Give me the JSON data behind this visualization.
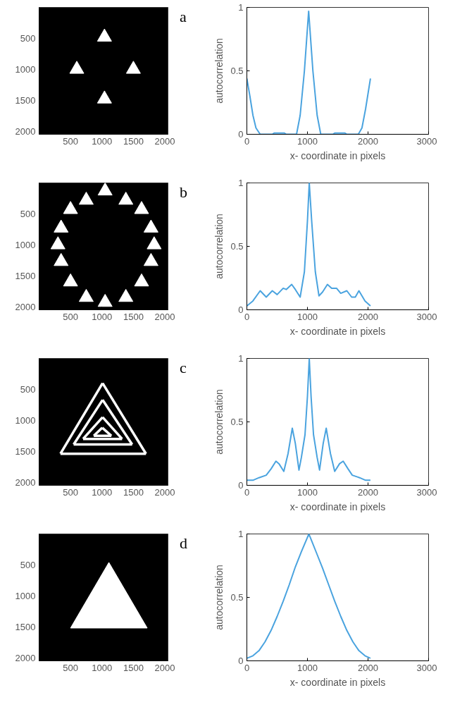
{
  "chart_data": [
    {
      "type": "scatter",
      "xlim": [
        0,
        2050
      ],
      "ylim": [
        2050,
        0
      ],
      "xticks": [
        500,
        1000,
        1500,
        2000
      ],
      "yticks": [
        500,
        1000,
        1500,
        2000
      ],
      "marker": "triangle",
      "grid": false,
      "series": [
        {
          "color": "#ffffff",
          "x": [
            1040,
            600,
            1500,
            1040
          ],
          "values": [
            480,
            1000,
            1000,
            1480
          ]
        }
      ]
    },
    {
      "type": "line",
      "xlabel": "x- coordinate in pixels",
      "ylabel": "autocorrelation",
      "annotations": [
        "a"
      ],
      "xlim": [
        0,
        3000
      ],
      "ylim": [
        0,
        1
      ],
      "xticks": [
        0,
        1000,
        2000,
        3000
      ],
      "yticks": [
        0,
        0.5,
        1
      ],
      "grid": false,
      "series": [
        {
          "color": "#4aa3df",
          "x": [
            0,
            50,
            100,
            150,
            220,
            420,
            450,
            620,
            650,
            820,
            880,
            950,
            1020,
            1090,
            1160,
            1220,
            1420,
            1450,
            1620,
            1650,
            1840,
            1900,
            1960,
            2040
          ],
          "values": [
            0.44,
            0.3,
            0.15,
            0.05,
            0,
            0,
            0.01,
            0.01,
            0,
            0,
            0.15,
            0.5,
            0.97,
            0.5,
            0.15,
            0,
            0,
            0.01,
            0.01,
            0,
            0,
            0.05,
            0.2,
            0.44
          ]
        }
      ]
    },
    {
      "type": "scatter",
      "xlim": [
        0,
        2050
      ],
      "ylim": [
        2050,
        0
      ],
      "xticks": [
        500,
        1000,
        1500,
        2000
      ],
      "yticks": [
        500,
        1000,
        1500,
        2000
      ],
      "marker": "triangle",
      "grid": false,
      "series": [
        {
          "color": "#ffffff",
          "x": [
            1050,
            750,
            1380,
            500,
            1630,
            350,
            1780,
            300,
            1830,
            350,
            1780,
            500,
            1630,
            750,
            1380,
            1050
          ],
          "values": [
            130,
            280,
            280,
            430,
            430,
            730,
            730,
            1000,
            1000,
            1270,
            1270,
            1600,
            1600,
            1850,
            1850,
            1930
          ]
        }
      ]
    },
    {
      "type": "line",
      "xlabel": "x- coordinate in pixels",
      "ylabel": "autocorrelation",
      "annotations": [
        "b"
      ],
      "xlim": [
        0,
        3000
      ],
      "ylim": [
        0,
        1
      ],
      "xticks": [
        0,
        1000,
        2000,
        3000
      ],
      "yticks": [
        0,
        0.5,
        1
      ],
      "grid": false,
      "series": [
        {
          "color": "#4aa3df",
          "x": [
            0,
            100,
            220,
            320,
            420,
            500,
            600,
            650,
            740,
            800,
            880,
            950,
            1000,
            1030,
            1070,
            1130,
            1190,
            1250,
            1330,
            1400,
            1480,
            1550,
            1650,
            1730,
            1790,
            1850,
            1950,
            2040
          ],
          "values": [
            0.03,
            0.07,
            0.15,
            0.1,
            0.15,
            0.12,
            0.17,
            0.16,
            0.2,
            0.16,
            0.1,
            0.3,
            0.7,
            1.0,
            0.7,
            0.3,
            0.11,
            0.14,
            0.2,
            0.17,
            0.17,
            0.13,
            0.15,
            0.1,
            0.1,
            0.15,
            0.07,
            0.03
          ]
        }
      ]
    },
    {
      "type": "line",
      "xlim": [
        0,
        2050
      ],
      "ylim": [
        2050,
        0
      ],
      "xticks": [
        500,
        1000,
        1500,
        2000
      ],
      "yticks": [
        500,
        1000,
        1500,
        2000
      ],
      "grid": false,
      "series": [
        {
          "color": "#ffffff",
          "x": [
            1010,
            340,
            1700,
            1010
          ],
          "values": [
            400,
            1540,
            1540,
            400
          ]
        },
        {
          "color": "#ffffff",
          "x": [
            1010,
            550,
            1480,
            1010
          ],
          "values": [
            670,
            1390,
            1390,
            670
          ]
        },
        {
          "color": "#ffffff",
          "x": [
            1010,
            700,
            1320,
            1010
          ],
          "values": [
            950,
            1300,
            1300,
            950
          ]
        },
        {
          "color": "#ffffff",
          "x": [
            1005,
            870,
            1150,
            1005
          ],
          "values": [
            1120,
            1250,
            1250,
            1120
          ]
        }
      ]
    },
    {
      "type": "line",
      "xlabel": "x- coordinate in pixels",
      "ylabel": "autocorrelation",
      "annotations": [
        "c"
      ],
      "xlim": [
        0,
        3000
      ],
      "ylim": [
        0,
        1
      ],
      "xticks": [
        0,
        1000,
        2000,
        3000
      ],
      "yticks": [
        0,
        0.5,
        1
      ],
      "grid": false,
      "series": [
        {
          "color": "#4aa3df",
          "x": [
            0,
            100,
            200,
            320,
            400,
            480,
            530,
            610,
            680,
            750,
            800,
            860,
            900,
            960,
            1000,
            1030,
            1060,
            1100,
            1160,
            1200,
            1260,
            1310,
            1380,
            1450,
            1530,
            1590,
            1670,
            1740,
            1860,
            1960,
            2040
          ],
          "values": [
            0.04,
            0.04,
            0.06,
            0.08,
            0.13,
            0.19,
            0.17,
            0.11,
            0.25,
            0.45,
            0.33,
            0.12,
            0.22,
            0.4,
            0.7,
            1.0,
            0.7,
            0.4,
            0.22,
            0.12,
            0.33,
            0.45,
            0.25,
            0.11,
            0.17,
            0.19,
            0.13,
            0.08,
            0.06,
            0.04,
            0.04
          ]
        }
      ]
    },
    {
      "type": "area",
      "xlim": [
        0,
        2050
      ],
      "ylim": [
        2050,
        0
      ],
      "xticks": [
        500,
        1000,
        1500,
        2000
      ],
      "yticks": [
        500,
        1000,
        1500,
        2000
      ],
      "grid": false,
      "series": [
        {
          "color": "#ffffff",
          "x": [
            1110,
            500,
            1720
          ],
          "values": [
            460,
            1520,
            1520
          ]
        }
      ]
    },
    {
      "type": "line",
      "xlabel": "x- coordinate in pixels",
      "ylabel": "autocorrelation",
      "annotations": [
        "d"
      ],
      "xlim": [
        0,
        3000
      ],
      "ylim": [
        0,
        1
      ],
      "xticks": [
        0,
        1000,
        2000,
        3000
      ],
      "yticks": [
        0,
        0.5,
        1
      ],
      "grid": false,
      "series": [
        {
          "color": "#4aa3df",
          "x": [
            0,
            100,
            200,
            300,
            400,
            500,
            600,
            700,
            800,
            900,
            1024,
            1150,
            1250,
            1350,
            1450,
            1550,
            1650,
            1750,
            1850,
            1950,
            2040
          ],
          "values": [
            0.02,
            0.04,
            0.08,
            0.15,
            0.24,
            0.35,
            0.47,
            0.6,
            0.74,
            0.86,
            1.0,
            0.85,
            0.73,
            0.6,
            0.47,
            0.35,
            0.24,
            0.15,
            0.08,
            0.04,
            0.02
          ]
        }
      ]
    }
  ]
}
